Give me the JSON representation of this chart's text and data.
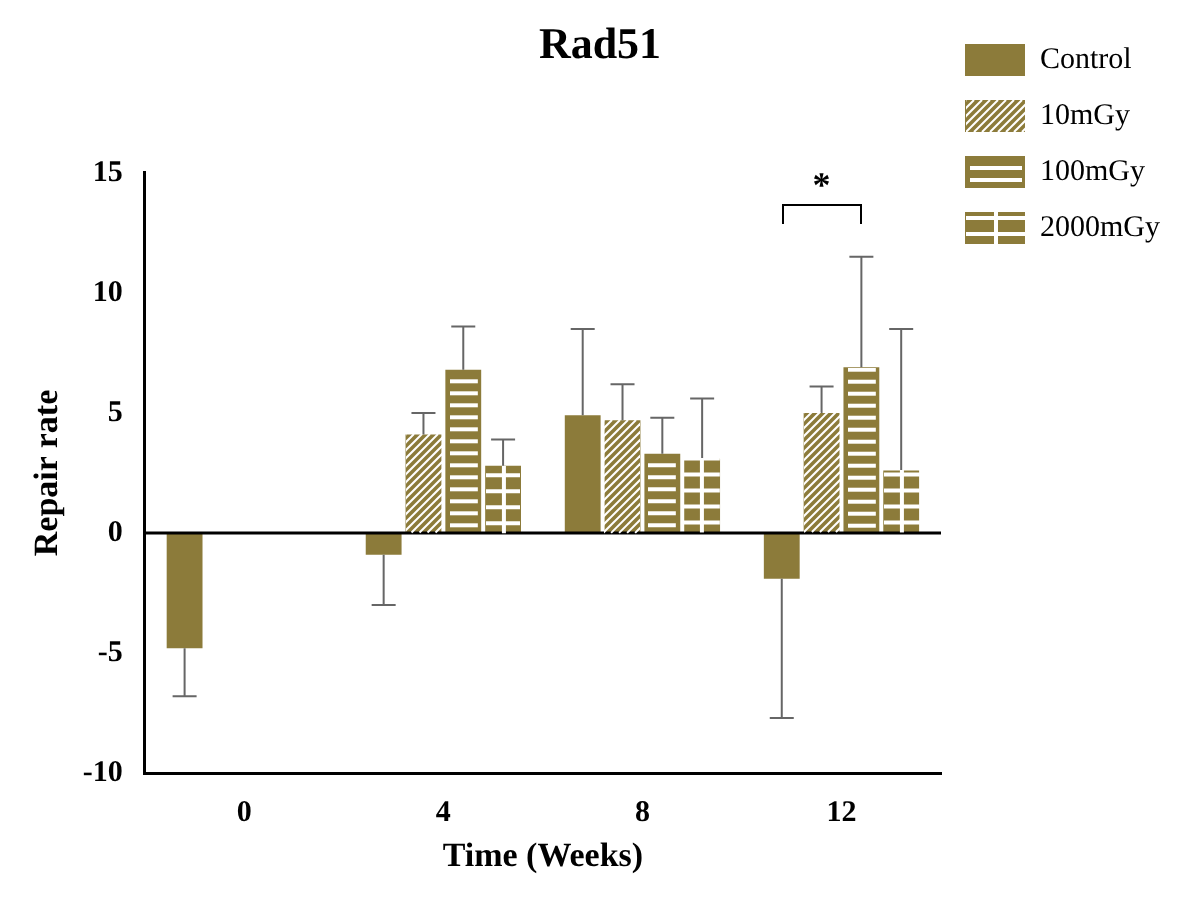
{
  "chart_data": {
    "type": "bar",
    "title": "Rad51",
    "xlabel": "Time (Weeks)",
    "ylabel": "Repair rate",
    "categories": [
      "0",
      "4",
      "8",
      "12"
    ],
    "series": [
      {
        "name": "Control",
        "color": "#8c7b3a",
        "values": [
          -4.8,
          -0.9,
          4.9,
          -1.9
        ],
        "errors": [
          [
            -6.8,
            -4.8
          ],
          [
            -3.0,
            -0.9
          ],
          [
            4.9,
            8.5
          ],
          [
            -7.7,
            -1.9
          ]
        ]
      },
      {
        "name": "10mGy",
        "color": "#8c7b3a",
        "values": [
          null,
          4.1,
          4.7,
          5.0
        ],
        "errors": [
          null,
          [
            4.1,
            5.0
          ],
          [
            4.7,
            6.2
          ],
          [
            5.0,
            6.1
          ]
        ]
      },
      {
        "name": "100mGy",
        "color": "#8c7b3a",
        "values": [
          null,
          6.8,
          3.3,
          6.9
        ],
        "errors": [
          null,
          [
            6.8,
            8.6
          ],
          [
            3.3,
            4.8
          ],
          [
            6.9,
            11.5
          ]
        ]
      },
      {
        "name": "2000mGy",
        "color": "#8c7b3a",
        "values": [
          null,
          2.8,
          3.1,
          2.6
        ],
        "errors": [
          null,
          [
            2.8,
            3.9
          ],
          [
            3.1,
            5.6
          ],
          [
            2.6,
            8.5
          ]
        ]
      }
    ],
    "ylim": [
      -10,
      15
    ],
    "yticks": [
      -10,
      -5,
      0,
      5,
      10,
      15
    ],
    "grid": false,
    "legend": "right",
    "ref_lines": [
      {
        "axis": "y",
        "value": 0
      }
    ],
    "annotations": [
      "*"
    ]
  }
}
